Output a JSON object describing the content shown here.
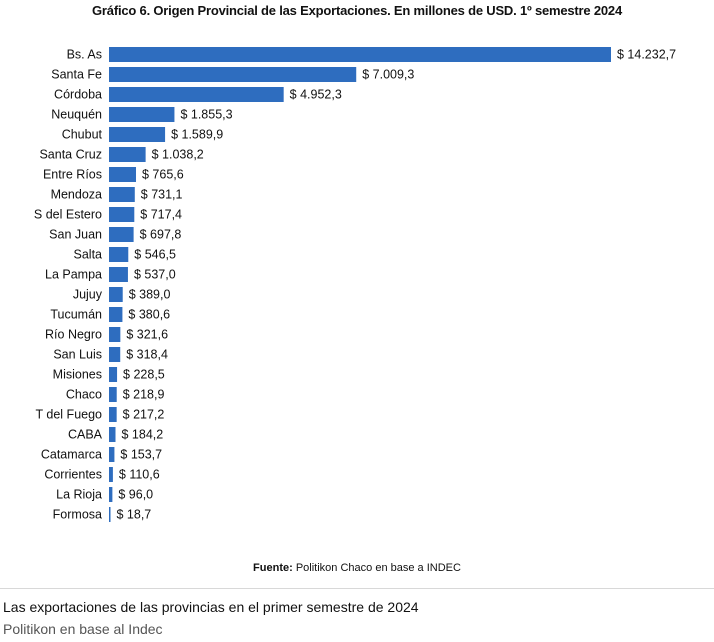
{
  "chart_data": {
    "type": "bar",
    "orientation": "horizontal",
    "title": "Gráfico 6. Origen Provincial de las Exportaciones. En millones de USD. 1º semestre 2024",
    "categories": [
      "Bs. As",
      "Santa Fe",
      "Córdoba",
      "Neuquén",
      "Chubut",
      "Santa Cruz",
      "Entre Ríos",
      "Mendoza",
      "S del Estero",
      "San Juan",
      "Salta",
      "La Pampa",
      "Jujuy",
      "Tucumán",
      "Río Negro",
      "San Luis",
      "Misiones",
      "Chaco",
      "T del Fuego",
      "CABA",
      "Catamarca",
      "Corrientes",
      "La Rioja",
      "Formosa"
    ],
    "values": [
      14232.7,
      7009.3,
      4952.3,
      1855.3,
      1589.9,
      1038.2,
      765.6,
      731.1,
      717.4,
      697.8,
      546.5,
      537.0,
      389.0,
      380.6,
      321.6,
      318.4,
      228.5,
      218.9,
      217.2,
      184.2,
      153.7,
      110.6,
      96.0,
      18.7
    ],
    "data_labels": [
      "$ 14.232,7",
      "$ 7.009,3",
      "$ 4.952,3",
      "$ 1.855,3",
      "$ 1.589,9",
      "$ 1.038,2",
      "$ 765,6",
      "$ 731,1",
      "$ 717,4",
      "$ 697,8",
      "$ 546,5",
      "$ 537,0",
      "$ 389,0",
      "$ 380,6",
      "$ 321,6",
      "$ 318,4",
      "$ 228,5",
      "$ 218,9",
      "$ 217,2",
      "$ 184,2",
      "$ 153,7",
      "$ 110,6",
      "$ 96,0",
      "$ 18,7"
    ],
    "bar_color": "#2e6dbf",
    "grid": false,
    "legend": "none",
    "xlim": [
      0,
      14232.7
    ]
  },
  "source": {
    "label": "Fuente:",
    "text": " Politikon Chaco en base a INDEC"
  },
  "caption": {
    "text": "Las exportaciones de las provincias en el primer semestre de 2024",
    "credit": "Politikon en base al Indec"
  }
}
